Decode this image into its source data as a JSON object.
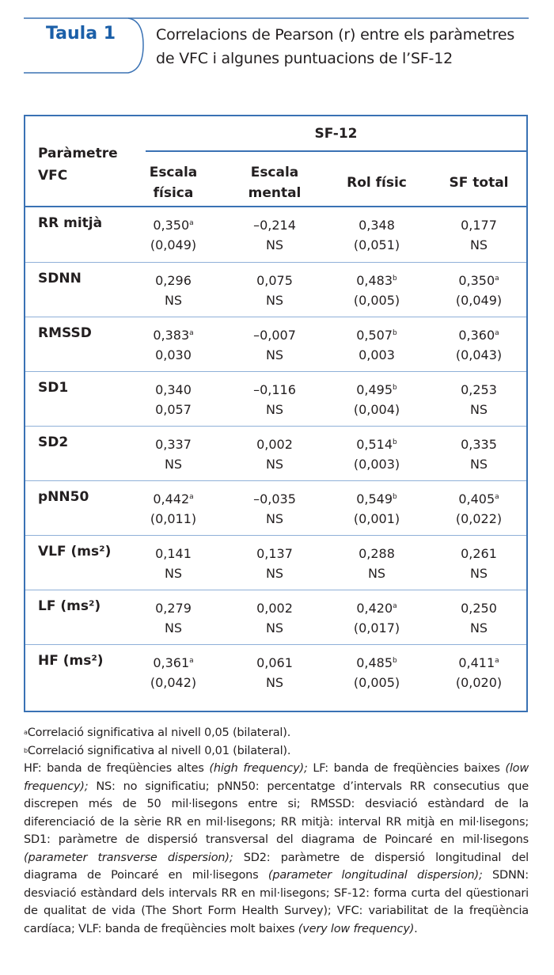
{
  "header": {
    "label": "Taula 1",
    "caption": "Correlacions de Pearson (r) entre els paràmetres de VFC i algunes puntuacions de l’SF-12",
    "accent_color": "#1b5fa8"
  },
  "table": {
    "param_header": [
      "Paràmetre",
      "VFC"
    ],
    "group_header": "SF-12",
    "columns": [
      [
        "Escala",
        "física"
      ],
      [
        "Escala",
        "mental"
      ],
      [
        "Rol físic"
      ],
      [
        "SF total"
      ]
    ],
    "rows": [
      {
        "name": "RR mitjà",
        "cells": [
          [
            "0,350",
            "a",
            "(0,049)"
          ],
          [
            "–0,214",
            "",
            "NS"
          ],
          [
            "0,348",
            "",
            "(0,051)"
          ],
          [
            "0,177",
            "",
            "NS"
          ]
        ]
      },
      {
        "name": "SDNN",
        "cells": [
          [
            "0,296",
            "",
            "NS"
          ],
          [
            "0,075",
            "",
            "NS"
          ],
          [
            "0,483",
            "b",
            "(0,005)"
          ],
          [
            "0,350",
            "a",
            "(0,049)"
          ]
        ]
      },
      {
        "name": "RMSSD",
        "cells": [
          [
            "0,383",
            "a",
            "0,030"
          ],
          [
            "–0,007",
            "",
            "NS"
          ],
          [
            "0,507",
            "b",
            "0,003"
          ],
          [
            "0,360",
            "a",
            "(0,043)"
          ]
        ]
      },
      {
        "name": "SD1",
        "cells": [
          [
            "0,340",
            "",
            "0,057"
          ],
          [
            "–0,116",
            "",
            "NS"
          ],
          [
            "0,495",
            "b",
            "(0,004)"
          ],
          [
            "0,253",
            "",
            "NS"
          ]
        ]
      },
      {
        "name": "SD2",
        "cells": [
          [
            "0,337",
            "",
            "NS"
          ],
          [
            "0,002",
            "",
            "NS"
          ],
          [
            "0,514",
            "b",
            "(0,003)"
          ],
          [
            "0,335",
            "",
            "NS"
          ]
        ]
      },
      {
        "name": "pNN50",
        "cells": [
          [
            "0,442",
            "a",
            "(0,011)"
          ],
          [
            "–0,035",
            "",
            "NS"
          ],
          [
            "0,549",
            "b",
            "(0,001)"
          ],
          [
            "0,405",
            "a",
            "(0,022)"
          ]
        ]
      },
      {
        "name": "VLF (ms²)",
        "cells": [
          [
            "0,141",
            "",
            "NS"
          ],
          [
            "0,137",
            "",
            "NS"
          ],
          [
            "0,288",
            "",
            "NS"
          ],
          [
            "0,261",
            "",
            "NS"
          ]
        ]
      },
      {
        "name": "LF (ms²)",
        "cells": [
          [
            "0,279",
            "",
            "NS"
          ],
          [
            "0,002",
            "",
            "NS"
          ],
          [
            "0,420",
            "a",
            "(0,017)"
          ],
          [
            "0,250",
            "",
            "NS"
          ]
        ]
      },
      {
        "name": "HF (ms²)",
        "cells": [
          [
            "0,361",
            "a",
            "(0,042)"
          ],
          [
            "0,061",
            "",
            "NS"
          ],
          [
            "0,485",
            "b",
            "(0,005)"
          ],
          [
            "0,411",
            "a",
            "(0,020)"
          ]
        ]
      }
    ]
  },
  "notes": {
    "a": {
      "mark": "a",
      "text": "Correlació significativa al nivell 0,05 (bilateral)."
    },
    "b": {
      "mark": "b",
      "text": "Correlació significativa al nivell 0,01 (bilateral)."
    },
    "abbrev": [
      {
        "t": "HF: banda de freqüències altes "
      },
      {
        "t": "(high frequency);",
        "i": true
      },
      {
        "t": " LF: banda de freqüències baixes "
      },
      {
        "t": "(low frequency);",
        "i": true
      },
      {
        "t": " NS: no significatiu; pNN50: percentatge d’intervals RR consecutius que discrepen més de 50 mil·lisegons entre si; RMSSD: desviació estàndard de la diferenciació de la sèrie RR en mil·lisegons; RR mitjà: interval RR mitjà en mil·lisegons; SD1: paràmetre de dispersió transversal del diagrama de Poincaré en mil·lisegons "
      },
      {
        "t": "(parameter transverse dispersion);",
        "i": true
      },
      {
        "t": " SD2: paràmetre de dispersió longitudinal del diagrama de Poincaré en mil·lisegons "
      },
      {
        "t": "(parameter longitudinal dispersion);",
        "i": true
      },
      {
        "t": " SDNN: desviació estàndard dels intervals RR en mil·lisegons; SF-12: forma curta del qüestionari de qualitat de vida (The Short Form Health Survey); VFC: variabilitat de la freqüència cardíaca; VLF: banda de freqüències molt baixes "
      },
      {
        "t": "(very low frequency)",
        "i": true
      },
      {
        "t": "."
      }
    ]
  }
}
